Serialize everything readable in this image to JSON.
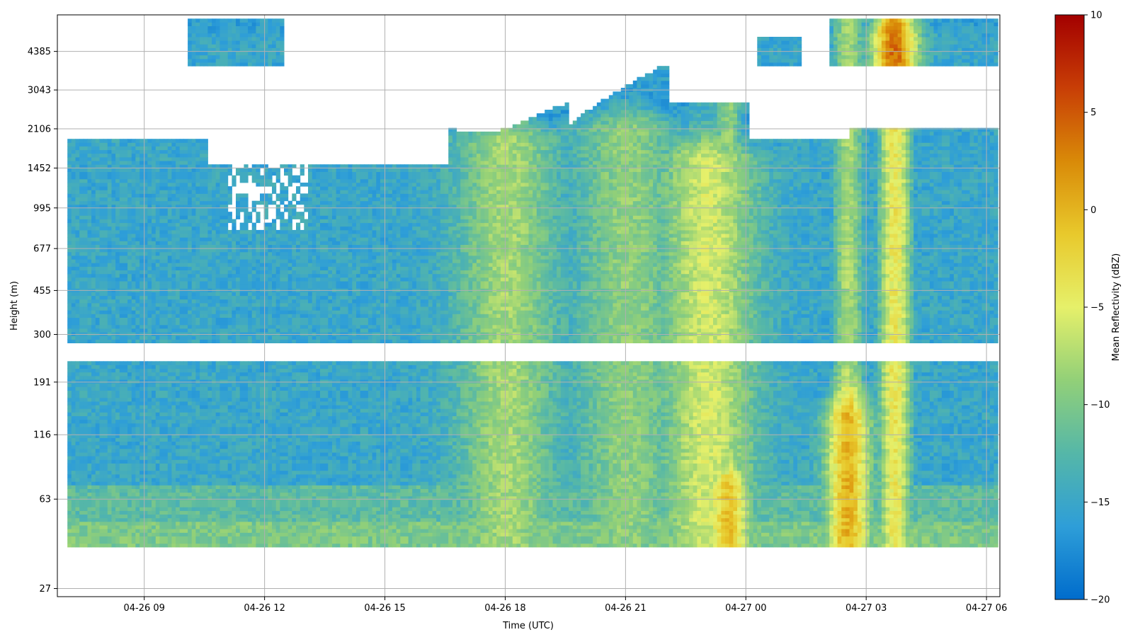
{
  "chart_data": {
    "type": "heatmap",
    "title": "",
    "xlabel": "Time (UTC)",
    "ylabel": "Height (m)",
    "colorbar_label": "Mean Reflectivity (dBZ)",
    "x_range": [
      "04-26 06:50",
      "04-27 06:20"
    ],
    "x_ticks": [
      "04-26 09",
      "04-26 12",
      "04-26 15",
      "04-26 18",
      "04-26 21",
      "04-27 00",
      "04-27 03",
      "04-27 06"
    ],
    "y_scale": "log",
    "y_range": [
      25,
      6200
    ],
    "y_ticks": [
      "27",
      "63",
      "116",
      "191",
      "300",
      "455",
      "677",
      "995",
      "1452",
      "2106",
      "3043",
      "4385"
    ],
    "color_range": [
      -20,
      10
    ],
    "colorbar_ticks": [
      "10",
      "5",
      "0",
      "−5",
      "−10",
      "−15",
      "−20"
    ],
    "colormap": [
      "#006ccc",
      "#2e9ed8",
      "#55b7a8",
      "#92d078",
      "#e6f06a",
      "#e8c92c",
      "#d98a08",
      "#c83e06",
      "#a30000"
    ],
    "grid": true,
    "no_data_height_band_m": [
      232,
      268
    ],
    "reflectivity_features": [
      {
        "time": "04-26 18",
        "height_range_m": [
          40,
          1800
        ],
        "dbz": -8
      },
      {
        "time": "04-26 21",
        "height_range_m": [
          40,
          2000
        ],
        "dbz": -9
      },
      {
        "time": "04-26 23",
        "height_range_m": [
          40,
          1500
        ],
        "dbz": -6
      },
      {
        "time": "04-26 23:30",
        "height_range_m": [
          40,
          65
        ],
        "dbz": -1
      },
      {
        "time": "04-27 02:30",
        "height_range_m": [
          40,
          130
        ],
        "dbz": 0
      },
      {
        "time": "04-27 03:40",
        "height_range_m": [
          4000,
          4800
        ],
        "dbz": 4
      }
    ]
  }
}
